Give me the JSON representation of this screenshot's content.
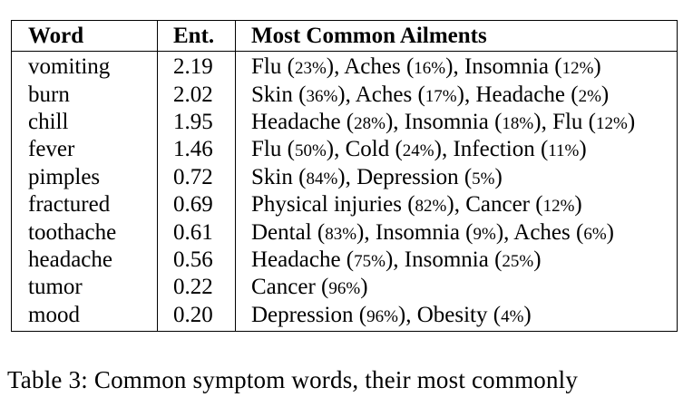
{
  "table": {
    "headers": [
      "Word",
      "Ent.",
      "Most Common Ailments"
    ],
    "rows": [
      {
        "word": "vomiting",
        "ent": "2.19",
        "ailments": [
          {
            "name": "Flu",
            "pct": "23%"
          },
          {
            "name": "Aches",
            "pct": "16%"
          },
          {
            "name": "Insomnia",
            "pct": "12%"
          }
        ]
      },
      {
        "word": "burn",
        "ent": "2.02",
        "ailments": [
          {
            "name": "Skin",
            "pct": "36%"
          },
          {
            "name": "Aches",
            "pct": "17%"
          },
          {
            "name": "Headache",
            "pct": "2%"
          }
        ]
      },
      {
        "word": "chill",
        "ent": "1.95",
        "ailments": [
          {
            "name": "Headache",
            "pct": "28%"
          },
          {
            "name": "Insomnia",
            "pct": "18%"
          },
          {
            "name": "Flu",
            "pct": "12%"
          }
        ]
      },
      {
        "word": "fever",
        "ent": "1.46",
        "ailments": [
          {
            "name": "Flu",
            "pct": "50%"
          },
          {
            "name": "Cold",
            "pct": "24%"
          },
          {
            "name": "Infection",
            "pct": "11%"
          }
        ]
      },
      {
        "word": "pimples",
        "ent": "0.72",
        "ailments": [
          {
            "name": "Skin",
            "pct": "84%"
          },
          {
            "name": "Depression",
            "pct": "5%"
          }
        ]
      },
      {
        "word": "fractured",
        "ent": "0.69",
        "ailments": [
          {
            "name": "Physical injuries",
            "pct": "82%"
          },
          {
            "name": "Cancer",
            "pct": "12%"
          }
        ]
      },
      {
        "word": "toothache",
        "ent": "0.61",
        "ailments": [
          {
            "name": "Dental",
            "pct": "83%"
          },
          {
            "name": "Insomnia",
            "pct": "9%"
          },
          {
            "name": "Aches",
            "pct": "6%"
          }
        ]
      },
      {
        "word": "headache",
        "ent": "0.56",
        "ailments": [
          {
            "name": "Headache",
            "pct": "75%"
          },
          {
            "name": "Insomnia",
            "pct": "25%"
          }
        ]
      },
      {
        "word": "tumor",
        "ent": "0.22",
        "ailments": [
          {
            "name": "Cancer",
            "pct": "96%"
          }
        ]
      },
      {
        "word": "mood",
        "ent": "0.20",
        "ailments": [
          {
            "name": "Depression",
            "pct": "96%"
          },
          {
            "name": "Obesity",
            "pct": "4%"
          }
        ]
      }
    ]
  },
  "caption": "Table 3:  Common symptom words, their most commonly"
}
